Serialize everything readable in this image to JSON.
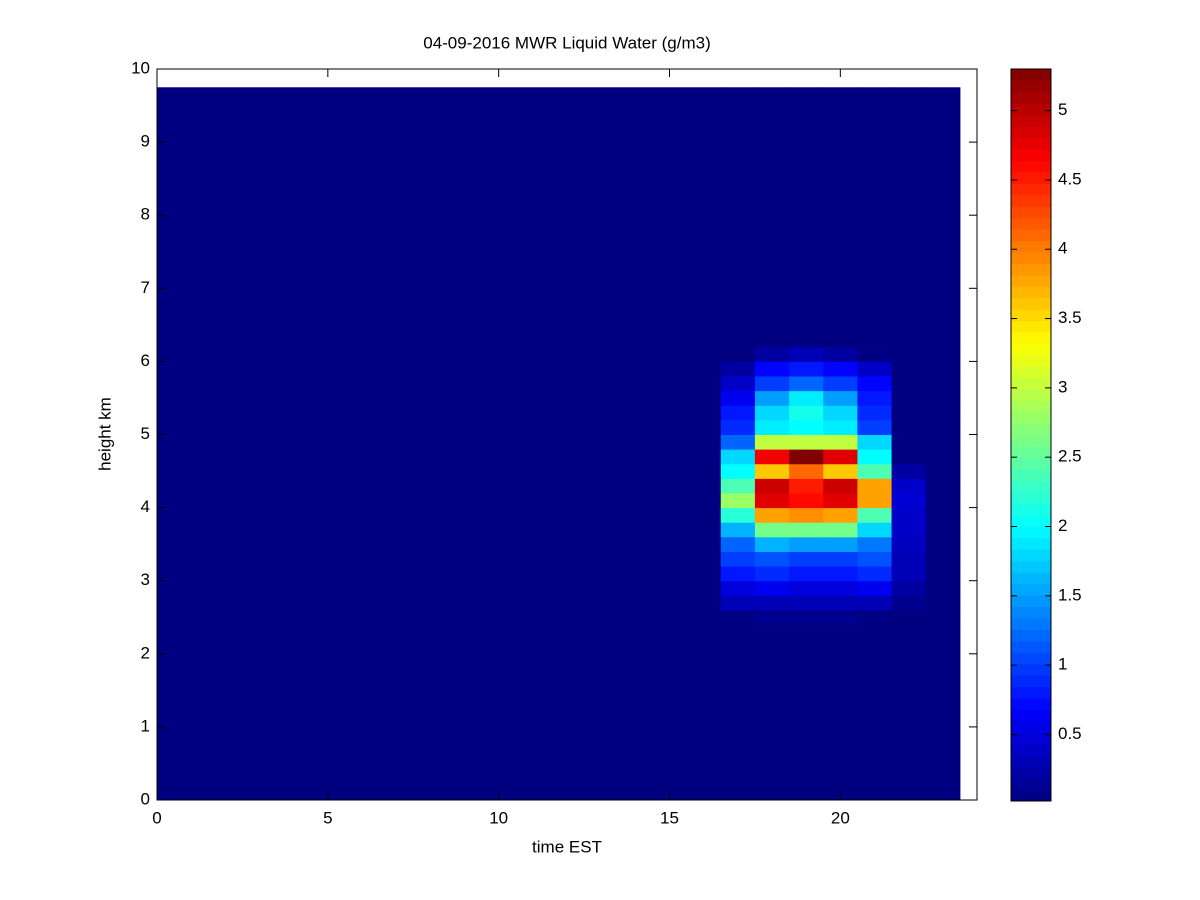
{
  "chart_data": {
    "type": "heatmap",
    "title": "04-09-2016 MWR Liquid Water (g/m3)",
    "x_label": "time EST",
    "y_label": "height km",
    "xlim": [
      0,
      24
    ],
    "ylim": [
      0,
      10
    ],
    "xticks": [
      0,
      5,
      10,
      15,
      20
    ],
    "yticks": [
      0,
      1,
      2,
      3,
      4,
      5,
      6,
      7,
      8,
      9,
      10
    ],
    "colormap": "jet",
    "clim": [
      0.02,
      5.3
    ],
    "colorbar_ticks": [
      0.5,
      1,
      1.5,
      2,
      2.5,
      3,
      3.5,
      4,
      4.5,
      5
    ],
    "x_bins": [
      0,
      16.5,
      17.5,
      18.5,
      19.5,
      20.5,
      21.5,
      22.5,
      23.5
    ],
    "y_bins": [
      0,
      2.4,
      2.6,
      2.8,
      3.0,
      3.2,
      3.4,
      3.6,
      3.8,
      4.0,
      4.2,
      4.4,
      4.6,
      4.8,
      5.0,
      5.2,
      5.4,
      5.6,
      5.8,
      6.0,
      6.2,
      9.75
    ],
    "values": [
      [
        0.02,
        0.02,
        0.02,
        0.02,
        0.02,
        0.02,
        0.02,
        0.02
      ],
      [
        0.02,
        0.05,
        0.1,
        0.1,
        0.1,
        0.05,
        0.02,
        0.02
      ],
      [
        0.02,
        0.3,
        0.3,
        0.3,
        0.3,
        0.3,
        0.1,
        0.02
      ],
      [
        0.02,
        0.5,
        0.6,
        0.5,
        0.5,
        0.6,
        0.2,
        0.02
      ],
      [
        0.02,
        0.8,
        0.9,
        0.8,
        0.8,
        0.9,
        0.3,
        0.02
      ],
      [
        0.02,
        1.0,
        1.1,
        1.0,
        1.0,
        1.1,
        0.3,
        0.02
      ],
      [
        0.02,
        1.2,
        1.6,
        1.5,
        1.5,
        1.3,
        0.35,
        0.02
      ],
      [
        0.02,
        1.6,
        2.6,
        2.6,
        2.6,
        1.8,
        0.4,
        0.02
      ],
      [
        0.02,
        2.2,
        3.8,
        3.9,
        3.8,
        2.4,
        0.4,
        0.02
      ],
      [
        0.02,
        2.8,
        4.8,
        4.6,
        4.8,
        3.8,
        0.45,
        0.02
      ],
      [
        0.02,
        2.4,
        4.9,
        4.5,
        4.9,
        3.8,
        0.4,
        0.02
      ],
      [
        0.02,
        2.0,
        3.6,
        4.1,
        3.6,
        2.4,
        0.2,
        0.02
      ],
      [
        0.02,
        1.8,
        4.7,
        5.3,
        4.8,
        2.0,
        0.02,
        0.02
      ],
      [
        0.02,
        1.2,
        3.0,
        3.0,
        3.0,
        1.8,
        0.02,
        0.02
      ],
      [
        0.02,
        0.9,
        1.9,
        2.0,
        1.9,
        1.0,
        0.02,
        0.02
      ],
      [
        0.02,
        0.8,
        1.8,
        2.1,
        1.8,
        0.9,
        0.02,
        0.02
      ],
      [
        0.02,
        0.6,
        1.5,
        1.9,
        1.5,
        0.8,
        0.02,
        0.02
      ],
      [
        0.02,
        0.4,
        1.0,
        1.2,
        1.0,
        0.7,
        0.02,
        0.02
      ],
      [
        0.02,
        0.2,
        0.7,
        0.8,
        0.7,
        0.4,
        0.02,
        0.02
      ],
      [
        0.02,
        0.02,
        0.2,
        0.3,
        0.2,
        0.05,
        0.02,
        0.02
      ],
      [
        0.02,
        0.02,
        0.02,
        0.02,
        0.02,
        0.02,
        0.02,
        0.02
      ]
    ]
  }
}
